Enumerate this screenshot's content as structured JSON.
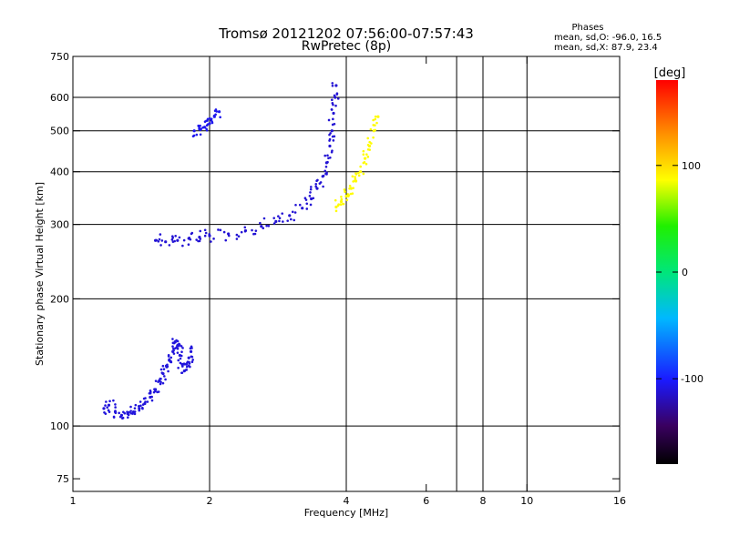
{
  "chart_data": {
    "type": "scatter",
    "title": "Tromsø 20121202 07:56:00-07:57:43",
    "subtitle": "RwPretec (8p)",
    "xlabel": "Frequency [MHz]",
    "ylabel": "Stationary phase Virtual Height [km]",
    "xscale": "log",
    "yscale": "log",
    "xlim": [
      1,
      16
    ],
    "ylim": [
      70,
      750
    ],
    "x_ticks": [
      1,
      2,
      4,
      6,
      8,
      10,
      16
    ],
    "y_ticks": [
      75,
      100,
      200,
      300,
      400,
      500,
      600,
      750
    ],
    "x_gridlines": [
      2,
      4,
      7,
      8,
      10
    ],
    "y_gridlines": [
      100,
      200,
      300,
      400,
      500,
      600
    ],
    "phase_stats": {
      "heading": "Phases",
      "line_o": "mean, sd,O: -96.0, 16.5",
      "line_x": "mean, sd,X:  87.9, 23.4"
    },
    "colorbar": {
      "label": "[deg]",
      "range": [
        -180,
        180
      ],
      "ticks": [
        -100,
        0,
        100
      ]
    },
    "series": [
      {
        "name": "O-mode trace (low)",
        "phase_deg": -110,
        "x": [
          1.17,
          1.2,
          1.24,
          1.28,
          1.32,
          1.36,
          1.4,
          1.44,
          1.48,
          1.52,
          1.55,
          1.58,
          1.61,
          1.63,
          1.66,
          1.68,
          1.7,
          1.72,
          1.74,
          1.76,
          1.78,
          1.8,
          1.82
        ],
        "y": [
          110,
          112,
          108,
          106,
          107,
          108,
          110,
          113,
          117,
          122,
          128,
          133,
          138,
          143,
          150,
          158,
          155,
          147,
          140,
          135,
          140,
          145,
          150
        ]
      },
      {
        "name": "O-mode trace (F layer)",
        "phase_deg": -112,
        "x": [
          1.52,
          1.6,
          1.7,
          1.8,
          1.9,
          2.0,
          2.2,
          2.4,
          2.6,
          2.8,
          3.0,
          3.2,
          3.35,
          3.45,
          3.55,
          3.62,
          3.68,
          3.72,
          3.75,
          3.78,
          3.8
        ],
        "y": [
          275,
          273,
          275,
          278,
          280,
          282,
          285,
          290,
          297,
          305,
          315,
          328,
          345,
          365,
          390,
          420,
          460,
          500,
          550,
          600,
          640
        ]
      },
      {
        "name": "O-mode echoes near 500 km",
        "phase_deg": -105,
        "x": [
          1.85,
          1.9,
          1.95,
          2.0,
          2.05,
          2.1
        ],
        "y": [
          500,
          505,
          510,
          520,
          540,
          555
        ]
      },
      {
        "name": "X-mode trace",
        "phase_deg": 87,
        "x": [
          3.8,
          3.9,
          4.0,
          4.1,
          4.2,
          4.3,
          4.4,
          4.5,
          4.6,
          4.7
        ],
        "y": [
          330,
          340,
          350,
          365,
          380,
          400,
          430,
          460,
          500,
          540
        ]
      }
    ]
  }
}
